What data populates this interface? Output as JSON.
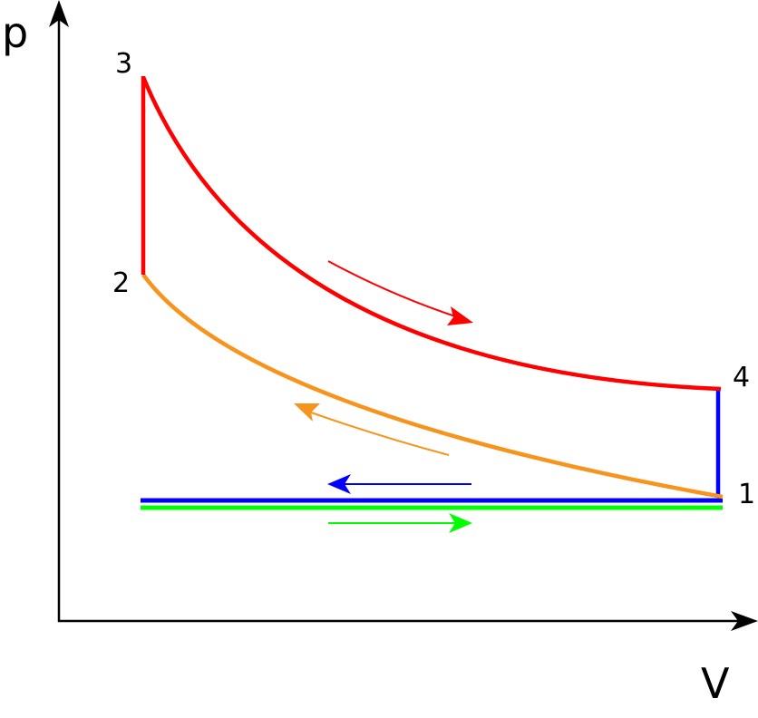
{
  "axes": {
    "y_label": "p",
    "x_label": "V"
  },
  "points": {
    "p1": "1",
    "p2": "2",
    "p3": "3",
    "p4": "4"
  },
  "colors": {
    "axis": "#000000",
    "expansion": "#ff0000",
    "compression": "#f7941d",
    "exhaust": "#0000ff",
    "intake": "#00ff00"
  }
}
